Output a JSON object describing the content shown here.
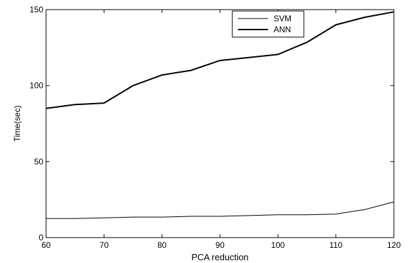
{
  "chart_data": {
    "type": "line",
    "xlabel": "PCA reduction",
    "ylabel": "Time(sec)",
    "xlim": [
      60,
      120
    ],
    "ylim": [
      0,
      150
    ],
    "xticks": [
      60,
      70,
      80,
      90,
      100,
      110,
      120
    ],
    "yticks": [
      0,
      50,
      100,
      150
    ],
    "grid": false,
    "legend_position": "top-center",
    "x": [
      60,
      65,
      70,
      75,
      80,
      85,
      90,
      95,
      100,
      105,
      110,
      115,
      120
    ],
    "series": [
      {
        "name": "SVM",
        "color": "#000000",
        "values": [
          12.5,
          12.5,
          13,
          13.5,
          13.5,
          14,
          14,
          14.5,
          15,
          15,
          15.5,
          18.5,
          23.5
        ]
      },
      {
        "name": "ANN",
        "color": "#000000",
        "values": [
          85,
          87.5,
          88.5,
          100,
          107,
          110,
          116.5,
          118.5,
          120.5,
          128.5,
          140,
          145,
          148.5
        ]
      }
    ]
  }
}
